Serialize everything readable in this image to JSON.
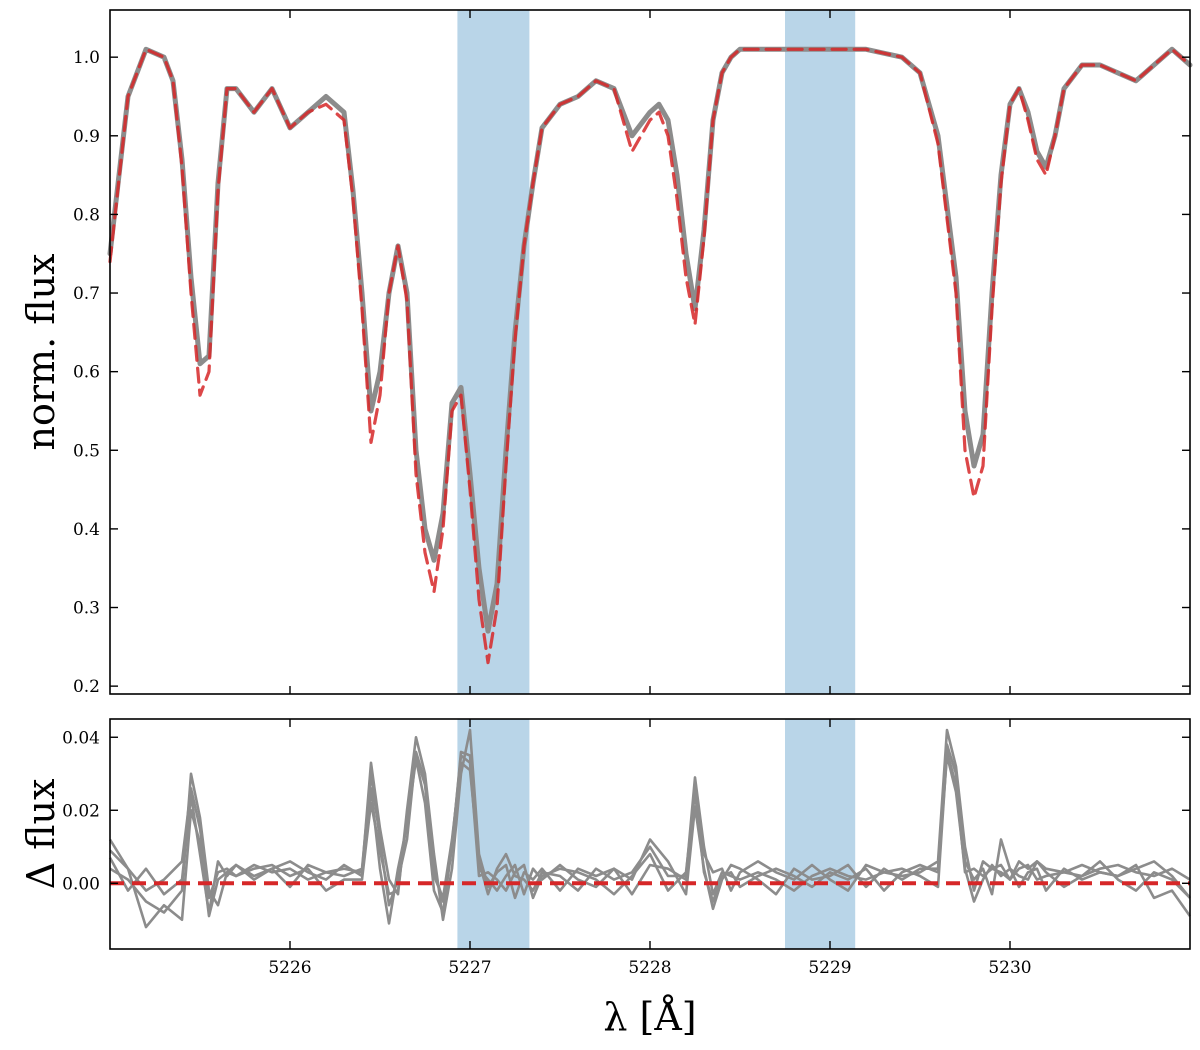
{
  "chart_data": [
    {
      "panel": "top",
      "type": "line",
      "xlabel": "λ [Å]",
      "ylabel": "norm. flux",
      "xlim": [
        5225.0,
        5231.0
      ],
      "ylim": [
        0.19,
        1.06
      ],
      "xticks": [
        5226,
        5227,
        5228,
        5229,
        5230
      ],
      "yticks": [
        0.2,
        0.3,
        0.4,
        0.5,
        0.6,
        0.7,
        0.8,
        0.9,
        1.0
      ],
      "ytick_labels": [
        "0.2",
        "0.3",
        "0.4",
        "0.5",
        "0.6",
        "0.7",
        "0.8",
        "0.9",
        "1.0"
      ],
      "grid": false,
      "shaded_regions": [
        {
          "x": [
            5226.93,
            5227.33
          ],
          "color": "#b9d5e8"
        },
        {
          "x": [
            5228.75,
            5229.14
          ],
          "color": "#b9d5e8"
        }
      ],
      "colors": {
        "observed": "#8c8c8c",
        "model": "#d62728"
      },
      "series": [
        {
          "style": "solid",
          "color": "#8c8c8c",
          "x": [
            5225.0,
            5225.1,
            5225.2,
            5225.3,
            5225.35,
            5225.4,
            5225.45,
            5225.5,
            5225.55,
            5225.6,
            5225.65,
            5225.7,
            5225.8,
            5225.9,
            5226.0,
            5226.1,
            5226.2,
            5226.3,
            5226.35,
            5226.4,
            5226.45,
            5226.5,
            5226.55,
            5226.6,
            5226.65,
            5226.7,
            5226.75,
            5226.8,
            5226.85,
            5226.9,
            5226.95,
            5227.0,
            5227.05,
            5227.1,
            5227.15,
            5227.2,
            5227.25,
            5227.3,
            5227.35,
            5227.4,
            5227.5,
            5227.6,
            5227.7,
            5227.8,
            5227.9,
            5228.0,
            5228.05,
            5228.1,
            5228.15,
            5228.2,
            5228.25,
            5228.3,
            5228.35,
            5228.4,
            5228.45,
            5228.5,
            5228.6,
            5228.7,
            5228.8,
            5229.0,
            5229.2,
            5229.4,
            5229.5,
            5229.6,
            5229.7,
            5229.75,
            5229.8,
            5229.85,
            5229.9,
            5229.95,
            5230.0,
            5230.05,
            5230.1,
            5230.15,
            5230.2,
            5230.25,
            5230.3,
            5230.4,
            5230.5,
            5230.6,
            5230.7,
            5230.8,
            5230.9,
            5231.0
          ],
          "y": [
            0.75,
            0.95,
            1.01,
            1.0,
            0.97,
            0.87,
            0.72,
            0.61,
            0.62,
            0.84,
            0.96,
            0.96,
            0.93,
            0.96,
            0.91,
            0.93,
            0.95,
            0.93,
            0.83,
            0.7,
            0.55,
            0.6,
            0.7,
            0.76,
            0.7,
            0.5,
            0.4,
            0.36,
            0.42,
            0.56,
            0.58,
            0.47,
            0.35,
            0.27,
            0.33,
            0.5,
            0.65,
            0.76,
            0.84,
            0.91,
            0.94,
            0.95,
            0.97,
            0.96,
            0.9,
            0.93,
            0.94,
            0.92,
            0.85,
            0.75,
            0.68,
            0.78,
            0.92,
            0.98,
            1.0,
            1.01,
            1.01,
            1.01,
            1.01,
            1.01,
            1.01,
            1.0,
            0.98,
            0.9,
            0.72,
            0.55,
            0.48,
            0.52,
            0.7,
            0.85,
            0.94,
            0.96,
            0.93,
            0.88,
            0.86,
            0.9,
            0.96,
            0.99,
            0.99,
            0.98,
            0.97,
            0.99,
            1.01,
            0.99
          ]
        },
        {
          "style": "dashed",
          "color": "#d62728",
          "x": [
            5225.0,
            5225.1,
            5225.2,
            5225.3,
            5225.35,
            5225.4,
            5225.45,
            5225.5,
            5225.55,
            5225.6,
            5225.65,
            5225.7,
            5225.8,
            5225.9,
            5226.0,
            5226.1,
            5226.2,
            5226.3,
            5226.35,
            5226.4,
            5226.45,
            5226.5,
            5226.55,
            5226.6,
            5226.65,
            5226.7,
            5226.75,
            5226.8,
            5226.85,
            5226.9,
            5226.95,
            5227.0,
            5227.05,
            5227.1,
            5227.15,
            5227.2,
            5227.25,
            5227.3,
            5227.35,
            5227.4,
            5227.5,
            5227.6,
            5227.7,
            5227.8,
            5227.9,
            5228.0,
            5228.05,
            5228.1,
            5228.15,
            5228.2,
            5228.25,
            5228.3,
            5228.35,
            5228.4,
            5228.45,
            5228.5,
            5228.6,
            5228.7,
            5228.8,
            5229.0,
            5229.2,
            5229.4,
            5229.5,
            5229.6,
            5229.7,
            5229.75,
            5229.8,
            5229.85,
            5229.9,
            5229.95,
            5230.0,
            5230.05,
            5230.1,
            5230.15,
            5230.2,
            5230.25,
            5230.3,
            5230.4,
            5230.5,
            5230.6,
            5230.7,
            5230.8,
            5230.9,
            5231.0
          ],
          "y": [
            0.74,
            0.95,
            1.01,
            1.0,
            0.97,
            0.86,
            0.7,
            0.57,
            0.6,
            0.83,
            0.96,
            0.96,
            0.93,
            0.96,
            0.91,
            0.93,
            0.94,
            0.92,
            0.82,
            0.68,
            0.51,
            0.57,
            0.7,
            0.76,
            0.69,
            0.47,
            0.37,
            0.32,
            0.4,
            0.55,
            0.57,
            0.45,
            0.31,
            0.23,
            0.3,
            0.48,
            0.64,
            0.76,
            0.84,
            0.91,
            0.94,
            0.95,
            0.97,
            0.96,
            0.88,
            0.92,
            0.93,
            0.9,
            0.82,
            0.72,
            0.66,
            0.77,
            0.92,
            0.98,
            1.0,
            1.01,
            1.01,
            1.01,
            1.01,
            1.01,
            1.01,
            1.0,
            0.98,
            0.89,
            0.7,
            0.5,
            0.44,
            0.48,
            0.68,
            0.84,
            0.94,
            0.96,
            0.92,
            0.87,
            0.85,
            0.9,
            0.96,
            0.99,
            0.99,
            0.98,
            0.97,
            0.99,
            1.01,
            0.99
          ]
        }
      ]
    },
    {
      "panel": "bottom",
      "type": "line",
      "xlabel": "λ [Å]",
      "ylabel": "Δ flux",
      "xlim": [
        5225.0,
        5231.0
      ],
      "ylim": [
        -0.018,
        0.045
      ],
      "xticks": [
        5226,
        5227,
        5228,
        5229,
        5230
      ],
      "xtick_labels": [
        "5226",
        "5227",
        "5228",
        "5229",
        "5230"
      ],
      "yticks": [
        0.0,
        0.02,
        0.04
      ],
      "ytick_labels": [
        "0.00",
        "0.02",
        "0.04"
      ],
      "grid": false,
      "shaded_regions": [
        {
          "x": [
            5226.93,
            5227.33
          ],
          "color": "#b9d5e8"
        },
        {
          "x": [
            5228.75,
            5229.14
          ],
          "color": "#b9d5e8"
        }
      ],
      "zero_line": {
        "y": 0.0,
        "style": "dashed",
        "color": "#d62728"
      },
      "residual_x": [
        5225.0,
        5225.1,
        5225.2,
        5225.3,
        5225.4,
        5225.45,
        5225.5,
        5225.55,
        5225.6,
        5225.65,
        5225.7,
        5225.8,
        5225.9,
        5226.0,
        5226.1,
        5226.2,
        5226.3,
        5226.4,
        5226.45,
        5226.5,
        5226.55,
        5226.6,
        5226.65,
        5226.7,
        5226.75,
        5226.8,
        5226.85,
        5226.9,
        5226.95,
        5227.0,
        5227.05,
        5227.1,
        5227.15,
        5227.2,
        5227.25,
        5227.3,
        5227.35,
        5227.4,
        5227.5,
        5227.6,
        5227.7,
        5227.8,
        5227.9,
        5228.0,
        5228.1,
        5228.2,
        5228.25,
        5228.3,
        5228.35,
        5228.4,
        5228.45,
        5228.5,
        5228.6,
        5228.7,
        5228.8,
        5228.9,
        5229.0,
        5229.1,
        5229.2,
        5229.3,
        5229.4,
        5229.5,
        5229.6,
        5229.65,
        5229.7,
        5229.75,
        5229.8,
        5229.85,
        5229.9,
        5229.95,
        5230.0,
        5230.05,
        5230.1,
        5230.15,
        5230.2,
        5230.3,
        5230.4,
        5230.5,
        5230.6,
        5230.7,
        5230.8,
        5230.9,
        5231.0
      ],
      "series": [
        {
          "color": "#8c8c8c",
          "values": [
            0.012,
            0.004,
            -0.002,
            0.001,
            0.006,
            0.026,
            0.015,
            -0.004,
            0.003,
            0.004,
            0.002,
            0.005,
            0.003,
            0.004,
            0.001,
            0.003,
            0.002,
            0.004,
            0.03,
            0.012,
            -0.006,
            0.001,
            0.012,
            0.036,
            0.028,
            0.002,
            -0.004,
            0.012,
            0.033,
            0.031,
            0.006,
            -0.003,
            0.004,
            0.008,
            0.002,
            0.001,
            -0.002,
            0.003,
            0.002,
            -0.002,
            0.004,
            0.001,
            0.003,
            0.01,
            0.002,
            0.002,
            0.029,
            0.01,
            -0.003,
            0.003,
            0.002,
            0.001,
            0.003,
            0.001,
            -0.002,
            0.002,
            0.004,
            0.002,
            0.001,
            0.003,
            0.002,
            0.003,
            0.006,
            0.042,
            0.032,
            0.01,
            -0.002,
            0.006,
            0.004,
            0.003,
            0.001,
            0.004,
            0.005,
            0.001,
            0.002,
            0.003,
            0.002,
            0.004,
            0.005,
            0.003,
            0.002,
            0.004,
            0.001
          ]
        },
        {
          "color": "#8c8c8c",
          "values": [
            0.007,
            -0.002,
            0.004,
            -0.003,
            0.001,
            0.024,
            0.008,
            -0.008,
            0.006,
            0.002,
            0.005,
            0.002,
            0.004,
            0.006,
            0.003,
            0.001,
            0.005,
            0.002,
            0.026,
            0.004,
            -0.011,
            0.004,
            0.016,
            0.034,
            0.022,
            -0.002,
            -0.008,
            0.01,
            0.036,
            0.035,
            0.004,
            0.001,
            -0.002,
            0.002,
            0.005,
            -0.003,
            0.004,
            0.001,
            0.005,
            0.001,
            -0.001,
            0.004,
            0.001,
            0.012,
            0.006,
            -0.003,
            0.021,
            0.004,
            -0.007,
            0.001,
            0.005,
            0.004,
            0.001,
            -0.003,
            0.004,
            0.001,
            0.002,
            0.005,
            -0.001,
            0.004,
            0.001,
            0.004,
            0.004,
            0.038,
            0.03,
            0.006,
            0.001,
            0.004,
            -0.003,
            0.012,
            0.004,
            0.002,
            0.001,
            0.006,
            0.003,
            -0.001,
            0.002,
            0.006,
            0.001,
            -0.002,
            0.003,
            0.001,
            -0.004
          ]
        },
        {
          "color": "#8c8c8c",
          "values": [
            0.004,
            0.001,
            -0.005,
            -0.008,
            -0.002,
            0.03,
            0.018,
            -0.002,
            -0.006,
            0.003,
            0.005,
            0.001,
            0.004,
            -0.001,
            0.005,
            0.003,
            0.004,
            0.003,
            0.033,
            0.015,
            0.001,
            -0.003,
            0.02,
            0.04,
            0.03,
            0.008,
            -0.01,
            0.004,
            0.03,
            0.042,
            0.008,
            -0.001,
            0.003,
            0.005,
            -0.004,
            0.003,
            0.001,
            0.004,
            -0.002,
            0.004,
            0.002,
            0.004,
            -0.003,
            0.005,
            0.004,
            0.001,
            0.027,
            0.008,
            0.003,
            0.004,
            -0.002,
            0.003,
            0.006,
            0.003,
            0.001,
            0.005,
            0.001,
            -0.002,
            0.005,
            0.003,
            0.004,
            0.002,
            -0.001,
            0.036,
            0.027,
            0.003,
            0.004,
            0.002,
            0.004,
            0.005,
            0.001,
            0.006,
            0.004,
            0.006,
            0.004,
            0.003,
            0.005,
            0.003,
            0.002,
            0.004,
            0.006,
            0.002,
            -0.004
          ]
        },
        {
          "color": "#8c8c8c",
          "values": [
            0.009,
            0.004,
            -0.012,
            -0.006,
            -0.01,
            0.02,
            0.011,
            -0.009,
            0.001,
            0.003,
            0.002,
            0.004,
            0.005,
            0.002,
            0.004,
            -0.002,
            0.001,
            0.001,
            0.022,
            0.009,
            -0.003,
            -0.002,
            0.018,
            0.035,
            0.027,
            0.004,
            -0.005,
            0.011,
            0.035,
            0.033,
            0.002,
            0.003,
            0.001,
            -0.002,
            0.003,
            0.005,
            -0.004,
            0.002,
            0.004,
            0.003,
            0.001,
            -0.003,
            0.002,
            0.008,
            -0.002,
            0.003,
            0.025,
            0.003,
            -0.005,
            0.002,
            0.003,
            -0.001,
            0.002,
            0.004,
            0.002,
            -0.001,
            0.003,
            0.001,
            0.004,
            -0.002,
            0.003,
            0.005,
            0.003,
            0.035,
            0.025,
            0.004,
            -0.005,
            0.001,
            0.005,
            0.002,
            0.004,
            -0.001,
            0.003,
            0.004,
            -0.002,
            0.004,
            0.001,
            0.003,
            0.002,
            0.005,
            -0.004,
            -0.002,
            -0.009
          ]
        }
      ]
    }
  ]
}
